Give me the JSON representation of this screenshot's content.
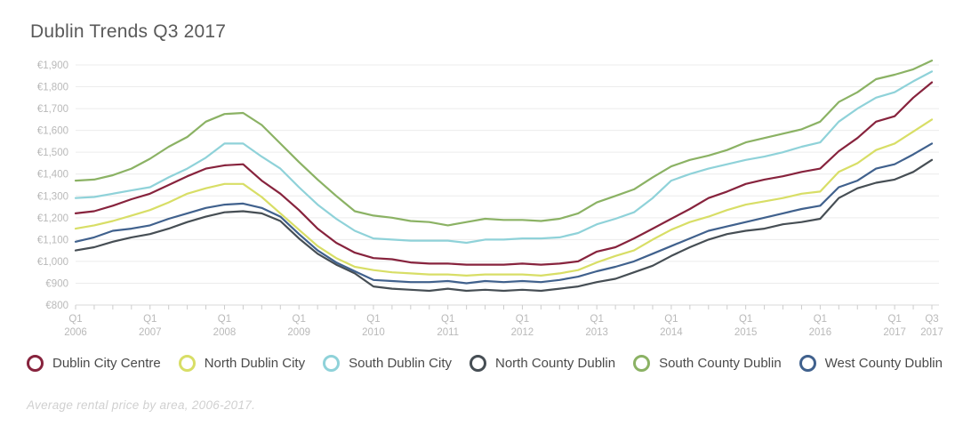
{
  "header": {
    "title": "Dublin Trends Q3 2017"
  },
  "footer": {
    "caption": "Average rental price by area, 2006-2017."
  },
  "colors": {
    "background": "#ffffff",
    "grid": "#ececec",
    "axis": "#d9d9d9",
    "tick": "#cccccc",
    "tick_label": "#b9b9b9",
    "title_text": "#595959",
    "legend_text": "#4a4a4a",
    "footer_text": "#d0d0d0"
  },
  "chart_data": {
    "type": "line",
    "title": "Dublin Trends Q3 2017",
    "xlabel": "",
    "ylabel": "",
    "ylim": [
      800,
      1900
    ],
    "ytick_step": 100,
    "ytick_prefix": "€",
    "grid": true,
    "legend_position": "bottom",
    "x": [
      "Q1 2006",
      "Q2 2006",
      "Q3 2006",
      "Q4 2006",
      "Q1 2007",
      "Q2 2007",
      "Q3 2007",
      "Q4 2007",
      "Q1 2008",
      "Q2 2008",
      "Q3 2008",
      "Q4 2008",
      "Q1 2009",
      "Q2 2009",
      "Q3 2009",
      "Q4 2009",
      "Q1 2010",
      "Q2 2010",
      "Q3 2010",
      "Q4 2010",
      "Q1 2011",
      "Q2 2011",
      "Q3 2011",
      "Q4 2011",
      "Q1 2012",
      "Q2 2012",
      "Q3 2012",
      "Q4 2012",
      "Q1 2013",
      "Q2 2013",
      "Q3 2013",
      "Q4 2013",
      "Q1 2014",
      "Q2 2014",
      "Q3 2014",
      "Q4 2014",
      "Q1 2015",
      "Q2 2015",
      "Q3 2015",
      "Q4 2015",
      "Q1 2016",
      "Q2 2016",
      "Q3 2016",
      "Q4 2016",
      "Q1 2017",
      "Q2 2017",
      "Q3 2017"
    ],
    "x_axis_ticks": [
      {
        "index": 0,
        "line1": "Q1",
        "line2": "2006"
      },
      {
        "index": 4,
        "line1": "Q1",
        "line2": "2007"
      },
      {
        "index": 8,
        "line1": "Q1",
        "line2": "2008"
      },
      {
        "index": 12,
        "line1": "Q1",
        "line2": "2009"
      },
      {
        "index": 16,
        "line1": "Q1",
        "line2": "2010"
      },
      {
        "index": 20,
        "line1": "Q1",
        "line2": "2011"
      },
      {
        "index": 24,
        "line1": "Q1",
        "line2": "2012"
      },
      {
        "index": 28,
        "line1": "Q1",
        "line2": "2013"
      },
      {
        "index": 32,
        "line1": "Q1",
        "line2": "2014"
      },
      {
        "index": 36,
        "line1": "Q1",
        "line2": "2015"
      },
      {
        "index": 40,
        "line1": "Q1",
        "line2": "2016"
      },
      {
        "index": 44,
        "line1": "Q1",
        "line2": "2017"
      },
      {
        "index": 46,
        "line1": "Q3",
        "line2": "2017"
      }
    ],
    "series": [
      {
        "name": "Dublin City Centre",
        "color": "#87233d",
        "values": [
          1220,
          1230,
          1255,
          1285,
          1310,
          1350,
          1390,
          1425,
          1440,
          1445,
          1370,
          1310,
          1235,
          1150,
          1085,
          1040,
          1015,
          1010,
          995,
          990,
          990,
          985,
          985,
          985,
          990,
          985,
          990,
          1000,
          1045,
          1065,
          1105,
          1150,
          1195,
          1240,
          1290,
          1320,
          1355,
          1375,
          1390,
          1410,
          1425,
          1505,
          1565,
          1640,
          1665,
          1750,
          1820
        ]
      },
      {
        "name": "North Dublin City",
        "color": "#d8de66",
        "values": [
          1150,
          1165,
          1185,
          1210,
          1235,
          1270,
          1310,
          1335,
          1355,
          1355,
          1295,
          1220,
          1145,
          1070,
          1015,
          975,
          960,
          950,
          945,
          940,
          940,
          935,
          940,
          940,
          940,
          935,
          945,
          960,
          995,
          1025,
          1050,
          1100,
          1145,
          1180,
          1205,
          1235,
          1260,
          1275,
          1290,
          1310,
          1320,
          1410,
          1450,
          1510,
          1540,
          1595,
          1650
        ]
      },
      {
        "name": "South Dublin City",
        "color": "#8fd2d9",
        "values": [
          1290,
          1295,
          1310,
          1325,
          1340,
          1385,
          1425,
          1475,
          1540,
          1540,
          1480,
          1425,
          1340,
          1260,
          1195,
          1140,
          1105,
          1100,
          1095,
          1095,
          1095,
          1085,
          1100,
          1100,
          1105,
          1105,
          1110,
          1130,
          1170,
          1195,
          1225,
          1290,
          1370,
          1400,
          1425,
          1445,
          1465,
          1480,
          1500,
          1525,
          1545,
          1640,
          1700,
          1750,
          1775,
          1825,
          1870
        ]
      },
      {
        "name": "North County Dublin",
        "color": "#464e54",
        "values": [
          1050,
          1065,
          1090,
          1110,
          1125,
          1150,
          1180,
          1205,
          1225,
          1230,
          1220,
          1185,
          1105,
          1035,
          985,
          945,
          885,
          875,
          870,
          865,
          875,
          865,
          870,
          865,
          870,
          865,
          875,
          885,
          905,
          920,
          950,
          980,
          1025,
          1065,
          1100,
          1125,
          1140,
          1150,
          1170,
          1180,
          1195,
          1290,
          1335,
          1360,
          1375,
          1410,
          1465
        ]
      },
      {
        "name": "South County Dublin",
        "color": "#8bb264",
        "values": [
          1370,
          1375,
          1395,
          1425,
          1470,
          1525,
          1570,
          1640,
          1675,
          1680,
          1625,
          1540,
          1455,
          1375,
          1300,
          1230,
          1210,
          1200,
          1185,
          1180,
          1165,
          1180,
          1195,
          1190,
          1190,
          1185,
          1195,
          1220,
          1270,
          1300,
          1330,
          1385,
          1435,
          1465,
          1485,
          1510,
          1545,
          1565,
          1585,
          1605,
          1640,
          1730,
          1775,
          1835,
          1855,
          1880,
          1920
        ]
      },
      {
        "name": "West County Dublin",
        "color": "#40618d",
        "values": [
          1090,
          1110,
          1140,
          1150,
          1165,
          1195,
          1220,
          1245,
          1260,
          1265,
          1245,
          1205,
          1125,
          1050,
          995,
          955,
          915,
          910,
          905,
          905,
          910,
          900,
          910,
          905,
          910,
          905,
          915,
          930,
          955,
          975,
          1000,
          1035,
          1070,
          1105,
          1140,
          1160,
          1180,
          1200,
          1220,
          1240,
          1255,
          1340,
          1370,
          1425,
          1445,
          1490,
          1540
        ]
      }
    ]
  }
}
